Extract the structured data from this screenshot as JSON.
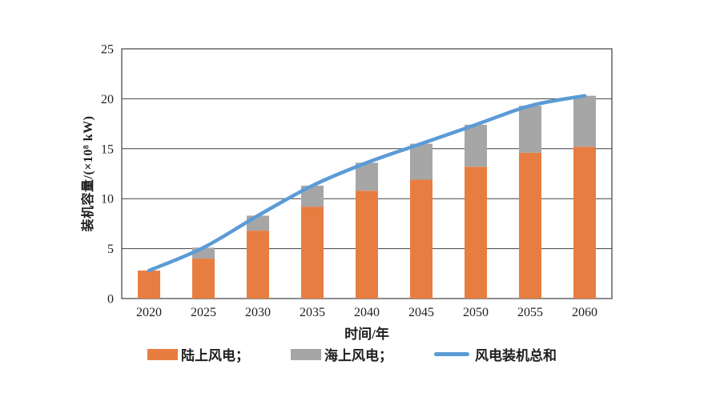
{
  "chart_data": {
    "type": "bar",
    "subtype": "stacked-bars-with-total-line",
    "title": "",
    "xlabel": "时间/年",
    "ylabel": "装机容量/(×10⁸ kW)",
    "categories": [
      "2020",
      "2025",
      "2030",
      "2035",
      "2040",
      "2045",
      "2050",
      "2055",
      "2060"
    ],
    "series": [
      {
        "name": "陆上风电",
        "type": "bar",
        "color": "#E87D41",
        "values": [
          2.8,
          4.0,
          6.8,
          9.2,
          10.8,
          11.9,
          13.2,
          14.6,
          15.2
        ]
      },
      {
        "name": "海上风电",
        "type": "bar",
        "color": "#A6A6A6",
        "values": [
          0,
          1.1,
          1.5,
          2.1,
          2.8,
          3.6,
          4.2,
          4.7,
          5.1
        ]
      },
      {
        "name": "风电装机总和",
        "type": "line",
        "color": "#5B9BD5",
        "values": [
          2.8,
          5.1,
          8.3,
          11.3,
          13.6,
          15.5,
          17.4,
          19.3,
          20.3
        ]
      }
    ],
    "ylim": [
      0,
      25
    ],
    "yticks": [
      0,
      5,
      10,
      15,
      20,
      25
    ],
    "grid": true,
    "grid_color": "#404040",
    "axis_text_color": "#1f1f1f",
    "background": "#ffffff",
    "legend_position": "bottom"
  },
  "legend": {
    "items": [
      {
        "label": "陆上风电；",
        "swatch": "bar",
        "color": "#E87D41"
      },
      {
        "label": "海上风电；",
        "swatch": "bar",
        "color": "#A6A6A6"
      },
      {
        "label": "风电装机总和",
        "swatch": "line",
        "color": "#5B9BD5"
      }
    ]
  }
}
